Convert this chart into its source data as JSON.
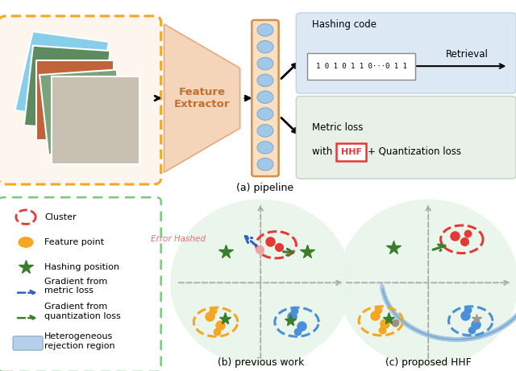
{
  "fig_width": 6.4,
  "fig_height": 4.61,
  "bg_color": "#ffffff",
  "title_pipeline": "(a) pipeline",
  "title_prev": "(b) previous work",
  "title_hhf": "(c) proposed HHF",
  "feature_extractor_text": "Feature\nExtractor",
  "hashing_code_label": "Hashing code",
  "bin_code_text": "1 0 1 0 1 1 0 ⋯⋯⋯ 0 1 1",
  "retrieval_text": "Retrieval",
  "metric_loss_line1": "Metric loss",
  "metric_loss_line2": "with ",
  "hhf_text": "HHF",
  "quant_text": "+ Quantization loss",
  "legend_cluster": "Cluster",
  "legend_feature": "Feature point",
  "legend_hashing": "Hashing position",
  "legend_grad_metric": "Gradient from\nmetric loss",
  "legend_grad_quant": "Gradient from\nquantization loss",
  "legend_reject": "Heterogeneous\nrejection region",
  "error_hashed_text": "Error Hashed",
  "orange_color": "#F5A623",
  "blue_color": "#4A90D9",
  "red_color": "#E53935",
  "green_color": "#3A7D2C",
  "dashed_green_border": "#7DC87D",
  "light_green_bg": "#E8F5E9",
  "light_blue_top_box": "#DCE9F5",
  "light_green_bottom_box": "#E8F0E8",
  "light_blue_reject": "#A8C8E8",
  "trap_face": "#F5D5BA",
  "trap_edge": "#E8A87C",
  "dot_face": "#A0C8E8",
  "dot_edge": "#D09050",
  "dot_rect_edge": "#D09050",
  "gray_axis": "#AAAAAA",
  "metric_blue_arrow": "#3060C0",
  "quant_green_arrow": "#3A7D2C"
}
